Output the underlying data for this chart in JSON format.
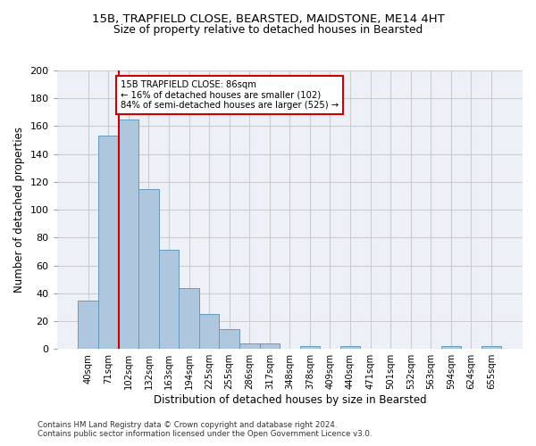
{
  "title1": "15B, TRAPFIELD CLOSE, BEARSTED, MAIDSTONE, ME14 4HT",
  "title2": "Size of property relative to detached houses in Bearsted",
  "xlabel": "Distribution of detached houses by size in Bearsted",
  "ylabel": "Number of detached properties",
  "categories": [
    "40sqm",
    "71sqm",
    "102sqm",
    "132sqm",
    "163sqm",
    "194sqm",
    "225sqm",
    "255sqm",
    "286sqm",
    "317sqm",
    "348sqm",
    "378sqm",
    "409sqm",
    "440sqm",
    "471sqm",
    "501sqm",
    "532sqm",
    "563sqm",
    "594sqm",
    "624sqm",
    "655sqm"
  ],
  "values": [
    35,
    153,
    165,
    115,
    71,
    44,
    25,
    14,
    4,
    4,
    0,
    2,
    0,
    2,
    0,
    0,
    0,
    0,
    2,
    0,
    2
  ],
  "bar_color": "#aec6de",
  "bar_edge_color": "#6699bb",
  "vline_x": 1.5,
  "vline_color": "#cc0000",
  "annotation_text": "15B TRAPFIELD CLOSE: 86sqm\n← 16% of detached houses are smaller (102)\n84% of semi-detached houses are larger (525) →",
  "annotation_box_color": "#ffffff",
  "annotation_box_edge": "#cc0000",
  "ylim": [
    0,
    200
  ],
  "yticks": [
    0,
    20,
    40,
    60,
    80,
    100,
    120,
    140,
    160,
    180,
    200
  ],
  "grid_color": "#cccccc",
  "bg_color": "#edf1f7",
  "footer1": "Contains HM Land Registry data © Crown copyright and database right 2024.",
  "footer2": "Contains public sector information licensed under the Open Government Licence v3.0."
}
